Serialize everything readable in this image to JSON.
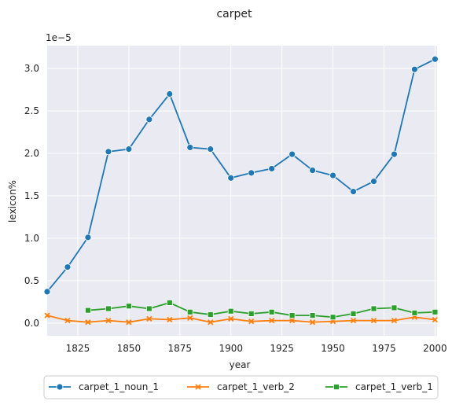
{
  "chart_data": {
    "type": "line",
    "title": "carpet",
    "xlabel": "year",
    "ylabel": "lexicon%",
    "y_multiplier_label": "1e−5",
    "xlim": [
      1810,
      2001
    ],
    "ylim": [
      -0.15,
      3.27
    ],
    "x_ticks": [
      1825,
      1850,
      1875,
      1900,
      1925,
      1950,
      1975,
      2000
    ],
    "y_ticks": [
      0.0,
      0.5,
      1.0,
      1.5,
      2.0,
      2.5,
      3.0
    ],
    "y_tick_labels": [
      "0.0",
      "0.5",
      "1.0",
      "1.5",
      "2.0",
      "2.5",
      "3.0"
    ],
    "grid": true,
    "background": "#eaeaf2",
    "legend_position": "bottom",
    "series": [
      {
        "name": "carpet_1_noun_1",
        "color": "#1f77b4",
        "marker": "circle",
        "x": [
          1810,
          1820,
          1830,
          1840,
          1850,
          1860,
          1870,
          1880,
          1890,
          1900,
          1910,
          1920,
          1930,
          1940,
          1950,
          1960,
          1970,
          1980,
          1990,
          2000
        ],
        "y": [
          0.37,
          0.66,
          1.01,
          2.02,
          2.05,
          2.4,
          2.7,
          2.07,
          2.05,
          1.71,
          1.77,
          1.82,
          1.99,
          1.8,
          1.74,
          1.55,
          1.67,
          1.99,
          2.99,
          3.11
        ]
      },
      {
        "name": "carpet_1_verb_2",
        "color": "#ff7f0e",
        "marker": "x",
        "x": [
          1810,
          1820,
          1830,
          1840,
          1850,
          1860,
          1870,
          1880,
          1890,
          1900,
          1910,
          1920,
          1930,
          1940,
          1950,
          1960,
          1970,
          1980,
          1990,
          2000
        ],
        "y": [
          0.09,
          0.03,
          0.01,
          0.03,
          0.01,
          0.05,
          0.04,
          0.06,
          0.01,
          0.05,
          0.02,
          0.03,
          0.03,
          0.01,
          0.02,
          0.03,
          0.03,
          0.03,
          0.07,
          0.04
        ]
      },
      {
        "name": "carpet_1_verb_1",
        "color": "#2ca02c",
        "marker": "square",
        "x": [
          1830,
          1840,
          1850,
          1860,
          1870,
          1880,
          1890,
          1900,
          1910,
          1920,
          1930,
          1940,
          1950,
          1960,
          1970,
          1980,
          1990,
          2000
        ],
        "y": [
          0.15,
          0.17,
          0.2,
          0.17,
          0.24,
          0.13,
          0.1,
          0.14,
          0.11,
          0.13,
          0.09,
          0.09,
          0.07,
          0.11,
          0.17,
          0.18,
          0.12,
          0.13
        ]
      }
    ]
  }
}
